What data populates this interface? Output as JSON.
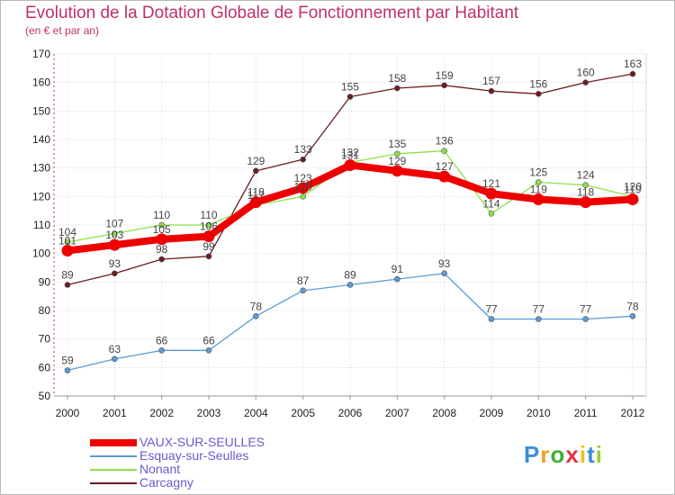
{
  "title": "Evolution de la Dotation Globale de Fonctionnement par Habitant",
  "subtitle": "(en € et par an)",
  "logo": {
    "text": "Proxiti",
    "letters": [
      "P",
      "r",
      "o",
      "x",
      "i",
      "t",
      "i"
    ],
    "colors": [
      "#3b8fd9",
      "#f0a020",
      "#3bb030",
      "#e03040",
      "#f0c020",
      "#3b8fd9",
      "#9acd32"
    ]
  },
  "chart_data": {
    "type": "line",
    "title": "Evolution de la Dotation Globale de Fonctionnement par Habitant",
    "subtitle": "(en € et par an)",
    "xlabel": "",
    "ylabel": "",
    "ylim": [
      50,
      170
    ],
    "yticks": [
      50,
      60,
      70,
      80,
      90,
      100,
      110,
      120,
      130,
      140,
      150,
      160,
      170
    ],
    "grid": true,
    "legend": "bottom-left",
    "x": [
      "2000",
      "2001",
      "2002",
      "2003",
      "2004",
      "2005",
      "2006",
      "2007",
      "2008",
      "2009",
      "2010",
      "2011",
      "2012"
    ],
    "series": [
      {
        "name": "VAUX-SUR-SEULLES",
        "color": "#ee0000",
        "values": [
          101,
          103,
          105,
          106,
          118,
          123,
          131,
          129,
          127,
          121,
          119,
          118,
          119
        ]
      },
      {
        "name": "Esquay-sur-Seulles",
        "color": "#5b9bd5",
        "values": [
          59,
          63,
          66,
          66,
          78,
          87,
          89,
          91,
          93,
          77,
          77,
          77,
          78
        ]
      },
      {
        "name": "Nonant",
        "color": "#8ee04a",
        "values": [
          104,
          107,
          110,
          110,
          117,
          120,
          132,
          135,
          136,
          114,
          125,
          124,
          120
        ]
      },
      {
        "name": "Carcagny",
        "color": "#6b1c22",
        "values": [
          89,
          93,
          98,
          99,
          129,
          133,
          155,
          158,
          159,
          157,
          156,
          160,
          163
        ]
      }
    ]
  }
}
